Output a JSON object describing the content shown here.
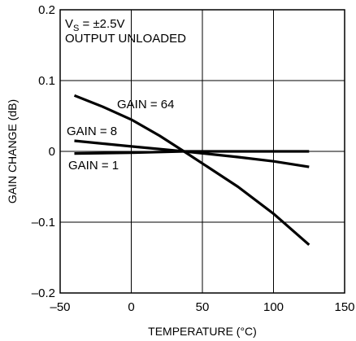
{
  "chart_data": {
    "type": "line",
    "title": "",
    "xlabel": "TEMPERATURE (°C)",
    "ylabel": "GAIN CHANGE (dB)",
    "xlim": [
      -50,
      150
    ],
    "ylim": [
      -0.2,
      0.2
    ],
    "x_ticks": [
      -50,
      0,
      50,
      100,
      150
    ],
    "x_tick_labels": [
      "–50",
      "0",
      "50",
      "100",
      "150"
    ],
    "y_ticks": [
      -0.2,
      -0.1,
      0,
      0.1,
      0.2
    ],
    "y_tick_labels": [
      "–0.2",
      "–0.1",
      "0",
      "0.1",
      "0.2"
    ],
    "grid": true,
    "conditions": {
      "line1_prefix": "V",
      "line1_subscript": "S",
      "line1_suffix": " = ±2.5V",
      "line2": "OUTPUT UNLOADED"
    },
    "series": [
      {
        "name": "GAIN = 64",
        "x": [
          -40,
          -20,
          0,
          20,
          37,
          50,
          75,
          100,
          125
        ],
        "y": [
          0.079,
          0.063,
          0.045,
          0.022,
          0.0,
          -0.017,
          -0.05,
          -0.088,
          -0.132
        ]
      },
      {
        "name": "GAIN = 8",
        "x": [
          -40,
          0,
          37,
          75,
          100,
          125
        ],
        "y": [
          0.015,
          0.007,
          0.0,
          -0.008,
          -0.014,
          -0.022
        ]
      },
      {
        "name": "GAIN = 1",
        "x": [
          -40,
          0,
          37,
          75,
          125
        ],
        "y": [
          -0.003,
          -0.002,
          0.0,
          0.0,
          0.0
        ]
      }
    ]
  }
}
